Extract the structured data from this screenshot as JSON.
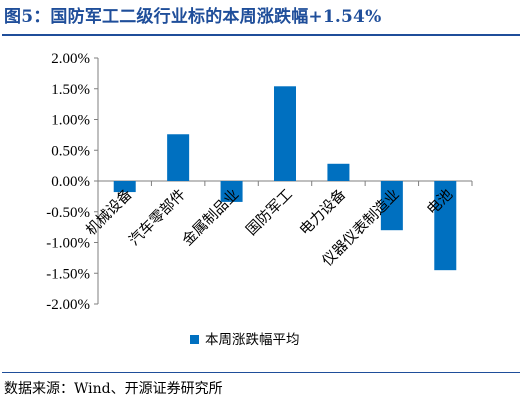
{
  "header": {
    "title": "图5：国防军工二级行业标的本周涨跌幅+1.54%"
  },
  "footer": {
    "source": "数据来源：Wind、开源证券研究所"
  },
  "colors": {
    "bar": "#0070c0",
    "title": "#1f4e9a",
    "axis": "#7f7f7f"
  },
  "chart_data": {
    "type": "bar",
    "title": "",
    "xlabel": "",
    "ylabel": "",
    "categories": [
      "机械设备",
      "汽车零部件",
      "金属制品业",
      "国防军工",
      "电力设备",
      "仪器仪表制造业",
      "电池"
    ],
    "series": [
      {
        "name": "本周涨跌幅平均",
        "values": [
          -0.18,
          0.76,
          -0.34,
          1.54,
          0.28,
          -0.8,
          -1.45
        ]
      }
    ],
    "ylim": [
      -2.0,
      2.0
    ],
    "yticks": [
      "2.00%",
      "1.50%",
      "1.00%",
      "0.50%",
      "0.00%",
      "-0.50%",
      "-1.00%",
      "-1.50%",
      "-2.00%"
    ],
    "grid": false,
    "legend": "bottom"
  }
}
